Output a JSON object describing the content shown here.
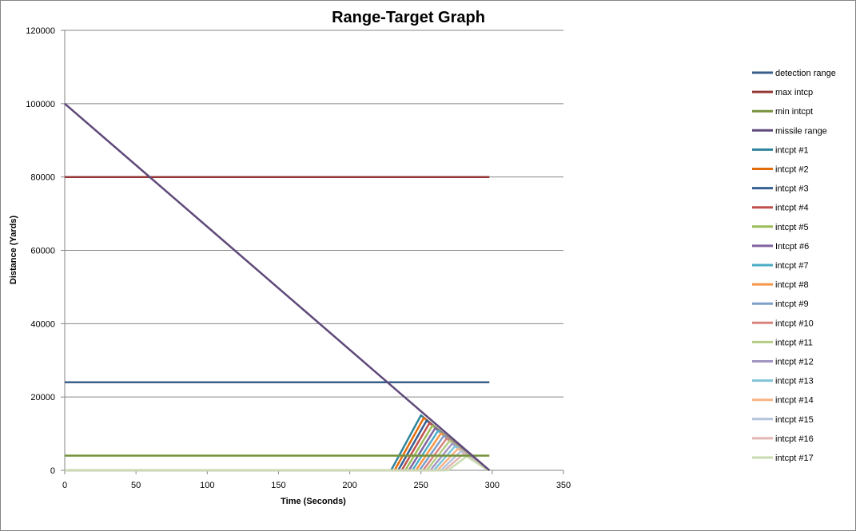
{
  "chart_data": {
    "type": "line",
    "title": "Range-Target Graph",
    "xlabel": "Time (Seconds)",
    "ylabel": "Distance (Yards)",
    "xlim": [
      0,
      350
    ],
    "ylim": [
      0,
      120000
    ],
    "xticks": [
      0,
      50,
      100,
      150,
      200,
      250,
      300,
      350
    ],
    "yticks": [
      0,
      20000,
      40000,
      60000,
      80000,
      100000,
      120000
    ],
    "grid": "horizontal major gridlines",
    "legend_position": "right",
    "series": [
      {
        "name": "detection range",
        "color": "#3a5f8a",
        "x": [
          0,
          298
        ],
        "y": [
          24000,
          24000
        ]
      },
      {
        "name": "max intcp",
        "color": "#943634",
        "x": [
          0,
          298
        ],
        "y": [
          80000,
          80000
        ]
      },
      {
        "name": "min intcpt",
        "color": "#76923c",
        "x": [
          0,
          298
        ],
        "y": [
          4000,
          4000
        ]
      },
      {
        "name": "missile range",
        "color": "#5f497a",
        "x": [
          0,
          298
        ],
        "y": [
          100000,
          0
        ]
      },
      {
        "name": "intcpt #1",
        "color": "#31849b",
        "x": [
          0,
          229,
          250,
          297
        ],
        "y": [
          0,
          0,
          15000,
          0
        ]
      },
      {
        "name": "intcpt #2",
        "color": "#e36c09",
        "x": [
          0,
          231.5,
          252,
          297
        ],
        "y": [
          0,
          0,
          14300,
          0
        ]
      },
      {
        "name": "intcpt #3",
        "color": "#366092",
        "x": [
          0,
          234,
          254,
          297
        ],
        "y": [
          0,
          0,
          13600,
          0
        ]
      },
      {
        "name": "intcpt #4",
        "color": "#c0504d",
        "x": [
          0,
          236.5,
          256,
          297
        ],
        "y": [
          0,
          0,
          12900,
          0
        ]
      },
      {
        "name": "intcpt #5",
        "color": "#9bbb59",
        "x": [
          0,
          239,
          258,
          297
        ],
        "y": [
          0,
          0,
          12200,
          0
        ]
      },
      {
        "name": "Intcpt #6",
        "color": "#8064a2",
        "x": [
          0,
          241.5,
          260,
          297
        ],
        "y": [
          0,
          0,
          11500,
          0
        ]
      },
      {
        "name": "intcpt #7",
        "color": "#4bacc6",
        "x": [
          0,
          244,
          262,
          297
        ],
        "y": [
          0,
          0,
          10800,
          0
        ]
      },
      {
        "name": "intcpt #8",
        "color": "#f79646",
        "x": [
          0,
          246.5,
          264,
          297
        ],
        "y": [
          0,
          0,
          10100,
          0
        ]
      },
      {
        "name": "intcpt #9",
        "color": "#7f9fc9",
        "x": [
          0,
          249,
          266,
          297
        ],
        "y": [
          0,
          0,
          9400,
          0
        ]
      },
      {
        "name": "intcpt #10",
        "color": "#d9837f",
        "x": [
          0,
          251.5,
          268,
          297
        ],
        "y": [
          0,
          0,
          8700,
          0
        ]
      },
      {
        "name": "intcpt #11",
        "color": "#b5cc85",
        "x": [
          0,
          254,
          270,
          297
        ],
        "y": [
          0,
          0,
          8000,
          0
        ]
      },
      {
        "name": "intcpt #12",
        "color": "#a394c1",
        "x": [
          0,
          256.5,
          272,
          297
        ],
        "y": [
          0,
          0,
          7300,
          0
        ]
      },
      {
        "name": "intcpt #13",
        "color": "#7fc4d8",
        "x": [
          0,
          259,
          274,
          297
        ],
        "y": [
          0,
          0,
          6600,
          0
        ]
      },
      {
        "name": "intcpt #14",
        "color": "#f9b384",
        "x": [
          0,
          261.5,
          276,
          297
        ],
        "y": [
          0,
          0,
          5900,
          0
        ]
      },
      {
        "name": "intcpt #15",
        "color": "#b4c4dc",
        "x": [
          0,
          264,
          278,
          297
        ],
        "y": [
          0,
          0,
          5200,
          0
        ]
      },
      {
        "name": "intcpt #16",
        "color": "#e3b6b4",
        "x": [
          0,
          266.5,
          280,
          297
        ],
        "y": [
          0,
          0,
          4500,
          0
        ]
      },
      {
        "name": "intcpt #17",
        "color": "#c9dbb0",
        "x": [
          0,
          269,
          282,
          297
        ],
        "y": [
          0,
          0,
          3800,
          0
        ]
      }
    ]
  }
}
